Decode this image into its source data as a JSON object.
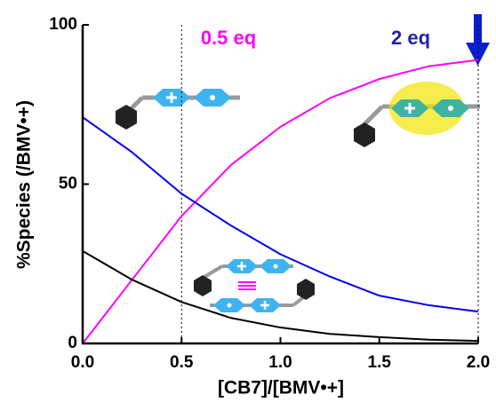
{
  "chart_data": {
    "type": "line",
    "x_label": "[CB7]/[BMV•+]",
    "y_label": "%Species (/BMV•+)",
    "annotations": [
      "0.5 eq",
      "2 eq"
    ],
    "x": [
      0,
      0.25,
      0.5,
      0.75,
      1.0,
      1.25,
      1.5,
      1.75,
      2.0
    ],
    "series": [
      {
        "color": "#ff00ff",
        "values": [
          0,
          20,
          40,
          56,
          68,
          77,
          83,
          87,
          89
        ]
      },
      {
        "color": "#0000ee",
        "values": [
          71,
          60,
          47,
          37,
          28,
          21,
          15,
          12,
          10
        ]
      },
      {
        "color": "#000000",
        "values": [
          29,
          20,
          13,
          8,
          5,
          3,
          2,
          1.2,
          0.8
        ]
      }
    ],
    "xlim": [
      0,
      2.0
    ],
    "ylim": [
      0,
      100
    ],
    "xticks": [
      {
        "value": 0,
        "label": "0.0"
      },
      0.5,
      {
        "value": 1.0,
        "label": "1.0"
      },
      1.5,
      {
        "value": 2.0,
        "label": "2.0"
      }
    ],
    "yticks": [
      0,
      50,
      100
    ]
  }
}
